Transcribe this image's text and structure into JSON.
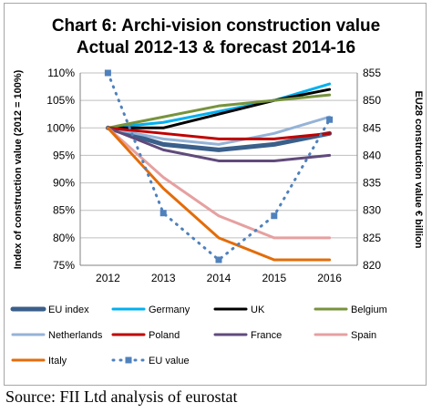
{
  "chart_data": {
    "type": "line",
    "title_lines": [
      "Chart 6:  Archi-vision construction value",
      "Actual 2012-13 & forecast 2014-16"
    ],
    "ylabel_left": "Index of construction value (2012 = 100%)",
    "ylabel_right": "EU28 construction value € billion",
    "categories": [
      "2012",
      "2013",
      "2014",
      "2015",
      "2016"
    ],
    "y_left": {
      "min": 75,
      "max": 110,
      "ticks": [
        "75%",
        "80%",
        "85%",
        "90%",
        "95%",
        "100%",
        "105%",
        "110%"
      ],
      "tick_values": [
        75,
        80,
        85,
        90,
        95,
        100,
        105,
        110
      ]
    },
    "y_right": {
      "min": 820,
      "max": 855,
      "ticks": [
        "820",
        "825",
        "830",
        "835",
        "840",
        "845",
        "850",
        "855"
      ],
      "tick_values": [
        820,
        825,
        830,
        835,
        840,
        845,
        850,
        855
      ]
    },
    "series": [
      {
        "name": "EU index",
        "axis": "left",
        "color": "#3a5f8a",
        "width": 5,
        "dash": "",
        "values": [
          100,
          97,
          96,
          97,
          99
        ]
      },
      {
        "name": "Germany",
        "axis": "left",
        "color": "#00b0f0",
        "width": 3,
        "dash": "",
        "values": [
          100,
          101,
          103,
          105,
          108
        ]
      },
      {
        "name": "UK",
        "axis": "left",
        "color": "#000000",
        "width": 3,
        "dash": "",
        "values": [
          100,
          100,
          102.5,
          105,
          107
        ]
      },
      {
        "name": "Belgium",
        "axis": "left",
        "color": "#77933c",
        "width": 3,
        "dash": "",
        "values": [
          100,
          102,
          104,
          105,
          106
        ]
      },
      {
        "name": "Netherlands",
        "axis": "left",
        "color": "#95b3d7",
        "width": 3,
        "dash": "",
        "values": [
          100,
          98,
          97,
          99,
          102
        ]
      },
      {
        "name": "Poland",
        "axis": "left",
        "color": "#c00000",
        "width": 3,
        "dash": "",
        "values": [
          100,
          99,
          98,
          98,
          99
        ]
      },
      {
        "name": "France",
        "axis": "left",
        "color": "#604a7b",
        "width": 3,
        "dash": "",
        "values": [
          100,
          96,
          94,
          94,
          95
        ]
      },
      {
        "name": "Spain",
        "axis": "left",
        "color": "#e6a0a0",
        "width": 3,
        "dash": "",
        "values": [
          100,
          91,
          84,
          80,
          80
        ]
      },
      {
        "name": "Italy",
        "axis": "left",
        "color": "#e36c09",
        "width": 3,
        "dash": "",
        "values": [
          100,
          89,
          80,
          76,
          76
        ]
      },
      {
        "name": "EU value",
        "axis": "right",
        "color": "#4f81bd",
        "width": 3,
        "dash": "1 7",
        "marker": "square",
        "values": [
          855,
          829.5,
          821,
          829,
          846.5
        ]
      }
    ],
    "legend_position": "bottom",
    "grid": true
  },
  "source": "Source: FII Ltd analysis of eurostat"
}
